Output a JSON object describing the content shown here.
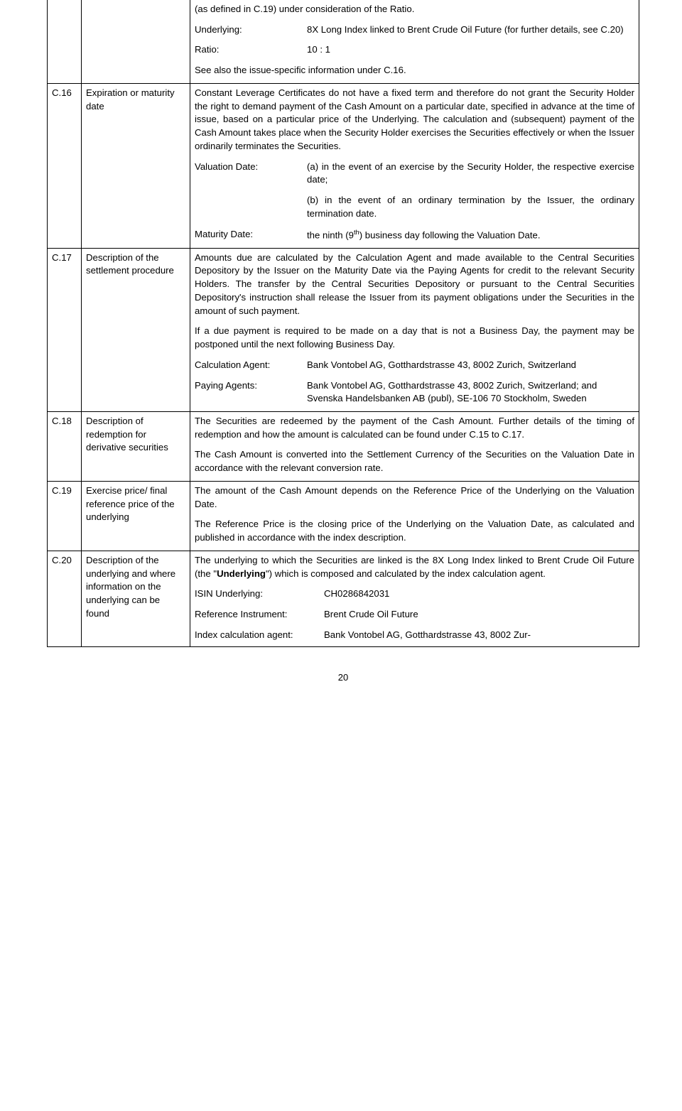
{
  "rows": {
    "r0": {
      "intro": "(as defined in C.19) under consideration of the Ratio.",
      "underlying_label": "Underlying:",
      "underlying_value": "8X Long Index linked to Brent Crude Oil Future (for further details, see C.20)",
      "ratio_label": "Ratio:",
      "ratio_value": "10 : 1",
      "seealso": "See also the issue-specific information under C.16."
    },
    "r1": {
      "code": "C.16",
      "label": "Expiration or maturity date",
      "para": "Constant Leverage Certificates do not have a fixed term and therefore do not grant the Security Holder the right to demand payment of the Cash Amount on a particular date, specified in advance at the time of issue, based on a particular price of the Underlying. The calculation and (subsequent) payment of the Cash Amount takes place when the Security Holder exercises the Securities effectively or when the Issuer ordinarily terminates the Securities.",
      "vdate_label": "Valuation Date:",
      "vdate_a": "(a) in the event of an exercise by the Security Holder, the respective exercise date;",
      "vdate_b": "(b) in the event of an ordinary termination by the Issuer, the ordinary termination date.",
      "mdate_label": "Maturity Date:",
      "mdate_pre": "the ninth (9",
      "mdate_sup": "th",
      "mdate_post": ") business day following the Valuation Date."
    },
    "r2": {
      "code": "C.17",
      "label": "Description of the settlement procedure",
      "p1": "Amounts due are calculated by the Calculation Agent and made available to the Central Securities Depository by the Issuer on the Maturity Date via the Paying Agents for credit to the relevant Security Holders. The transfer by the Central Securities Depository or pursuant to the Central Securities Depository's instruction shall release the Issuer from its payment obligations under the Securities in the amount of such payment.",
      "p2": "If a due payment is required to be made on a day that is not a Business Day, the payment may be postponed until the next following Business Day.",
      "calc_label": "Calculation Agent:",
      "calc_value": "Bank Vontobel AG, Gotthardstrasse 43, 8002 Zurich, Switzerland",
      "pay_label": "Paying Agents:",
      "pay_value": "Bank Vontobel AG, Gotthardstrasse 43, 8002 Zurich, Switzerland; and\nSvenska Handelsbanken AB (publ), SE-106 70 Stockholm, Sweden"
    },
    "r3": {
      "code": "C.18",
      "label": "Description of redemption for derivative securities",
      "p1": "The Securities are redeemed by the payment of the Cash Amount. Further details of the timing of redemption and how the amount is calculated can be found under C.15 to C.17.",
      "p2": "The Cash Amount is converted into the Settlement Currency of the Securities on the Valuation Date in accordance with the relevant conversion rate."
    },
    "r4": {
      "code": "C.19",
      "label": "Exercise price/ final reference price of the underlying",
      "p1": "The amount of the Cash Amount depends on the Reference Price of the Underlying on the Valuation Date.",
      "p2": "The Reference Price is the closing price of the Underlying on the Valuation Date, as calculated and published in accordance with the index description."
    },
    "r5": {
      "code": "C.20",
      "label": "Description of the underlying and where information on the underlying can be found",
      "p_pre": "The underlying to which the Securities are linked is the 8X Long Index linked to Brent Crude Oil Future (the \"",
      "p_bold": "Underlying",
      "p_post": "\") which is composed and calculated by the index calculation agent.",
      "isin_label": "ISIN Underlying:",
      "isin_value": "CH0286842031",
      "ref_label": "Reference Instrument:",
      "ref_value": "Brent Crude Oil Future",
      "idx_label": "Index calculation agent:",
      "idx_value": "Bank Vontobel AG, Gotthardstrasse 43, 8002 Zur-"
    }
  },
  "page_number": "20"
}
